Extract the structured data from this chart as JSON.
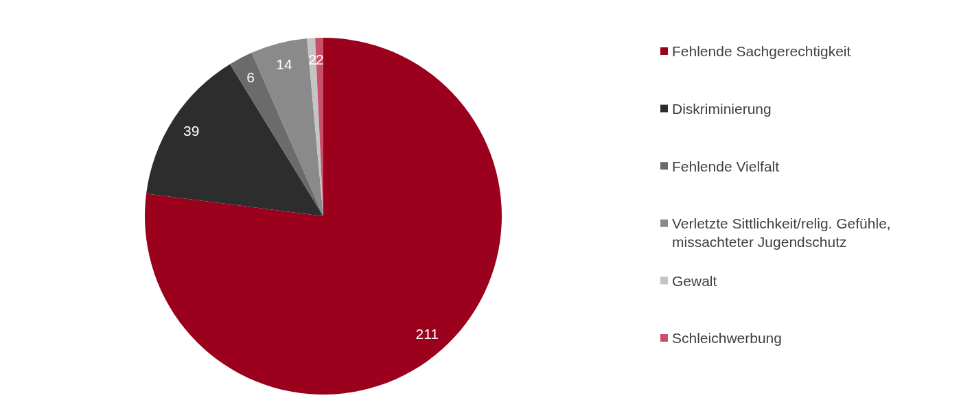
{
  "chart_data": {
    "type": "pie",
    "categories": [
      "Fehlende Sachgerechtigkeit",
      "Diskriminierung",
      "Fehlende Vielfalt",
      "Verletzte Sittlichkeit/relig. Gefühle, missachteter Jugendschutz",
      "Gewalt",
      "Schleichwerbung"
    ],
    "values": [
      211,
      39,
      6,
      14,
      2,
      2
    ],
    "colors": [
      "#9b001c",
      "#2d2d2d",
      "#6b6b6b",
      "#8a8a8a",
      "#c4c4c4",
      "#c9506a"
    ],
    "data_labels": true,
    "legend": "right"
  }
}
